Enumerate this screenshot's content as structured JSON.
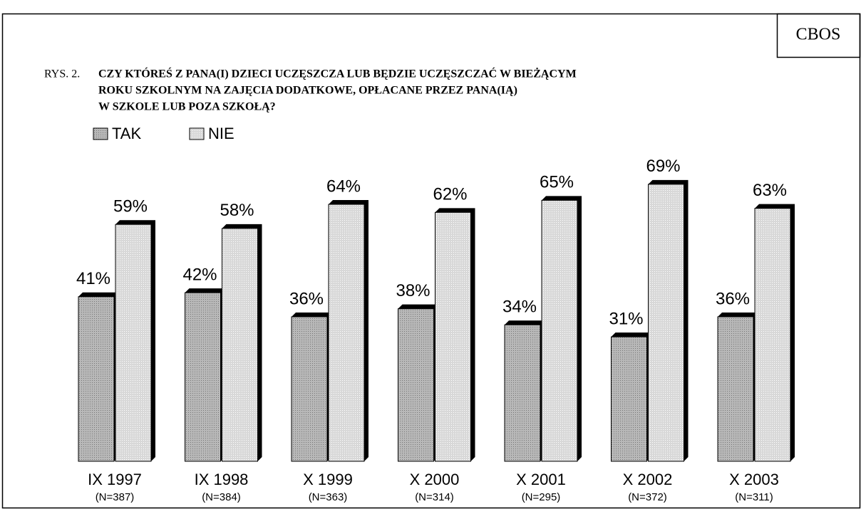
{
  "chart_data": {
    "type": "bar",
    "source": "CBOS",
    "figure_label": "RYS. 2.",
    "title_lines": [
      "CZY KTÓREŚ Z PANA(I) DZIECI UCZĘSZCZA LUB BĘDZIE UCZĘSZCZAĆ W  BIEŻĄCYM",
      "ROKU SZKOLNYM NA ZAJĘCIA DODATKOWE, OPŁACANE PRZEZ  PANA(IĄ)",
      "W  SZKOLE LUB POZA SZKOŁĄ?"
    ],
    "categories": [
      "IX 1997",
      "IX 1998",
      "X 1999",
      "X 2000",
      "X 2001",
      "X 2002",
      "X 2003"
    ],
    "sample_sizes": [
      "(N=387)",
      "(N=384)",
      "(N=363)",
      "(N=314)",
      "(N=295)",
      "(N=372)",
      "(N=311)"
    ],
    "series": [
      {
        "name": "TAK",
        "color": "#b8b8b8",
        "values": [
          41,
          42,
          36,
          38,
          34,
          31,
          36
        ],
        "value_labels": [
          "41%",
          "42%",
          "36%",
          "38%",
          "34%",
          "31%",
          "36%"
        ]
      },
      {
        "name": "NIE",
        "color": "#d8d8d8",
        "values": [
          59,
          58,
          64,
          62,
          65,
          69,
          63
        ],
        "value_labels": [
          "59%",
          "58%",
          "64%",
          "62%",
          "65%",
          "69%",
          "63%"
        ]
      }
    ],
    "legend": "top-left"
  }
}
